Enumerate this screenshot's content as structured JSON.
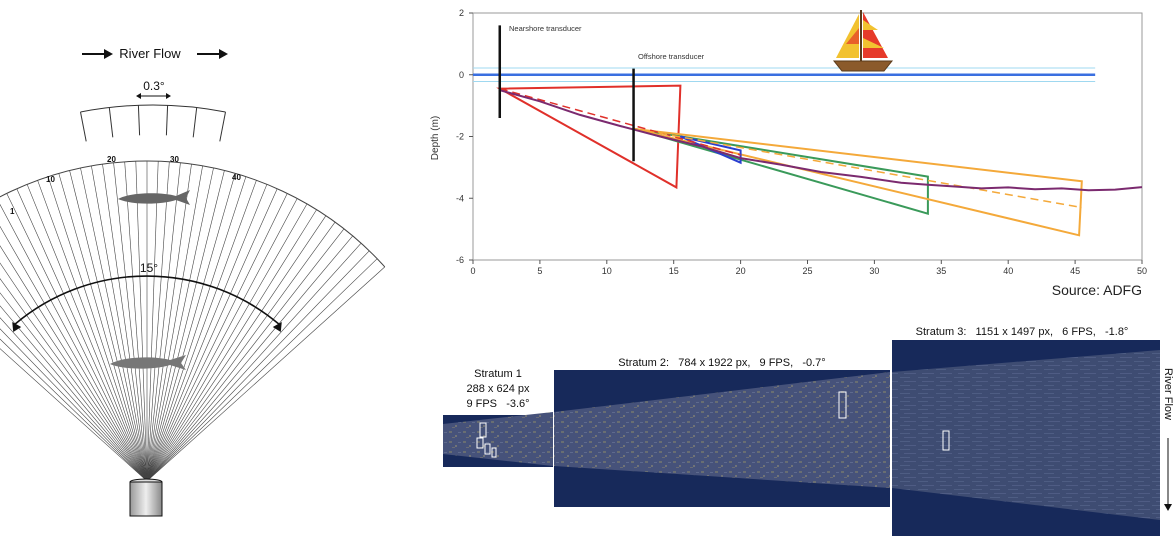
{
  "sonar_diagram": {
    "flow_label": "River Flow",
    "beam_width_label": "0.3°",
    "fan_angle_label": "15°",
    "beam_numbers": [
      "1",
      "10",
      "20",
      "30",
      "40"
    ]
  },
  "chart_data": {
    "type": "line",
    "xlabel": "",
    "ylabel": "Depth (m)",
    "xlim": [
      0,
      50
    ],
    "ylim": [
      -6,
      2
    ],
    "xticks": [
      "0",
      "5",
      "10",
      "15",
      "20",
      "25",
      "30",
      "35",
      "40",
      "45",
      "50"
    ],
    "yticks": [
      "2",
      "0",
      "-2",
      "-4",
      "-6"
    ],
    "annotations": [
      "Nearshore transducer",
      "Offshore transducer"
    ],
    "source": "Source: ADFG",
    "surface": {
      "y": 0,
      "x_range": [
        0,
        46.5
      ],
      "color": "#3a6fe0"
    },
    "nearshore_transducer": {
      "x": 2,
      "y_top": 1.6,
      "y_bottom": -1.4
    },
    "offshore_transducer": {
      "x": 12,
      "y_top": 0.2,
      "y_bottom": -2.8
    },
    "riverbed": {
      "color": "#7b2a6f",
      "points": [
        [
          2,
          -0.5
        ],
        [
          5,
          -0.9
        ],
        [
          8,
          -1.3
        ],
        [
          11,
          -1.7
        ],
        [
          14,
          -2.0
        ],
        [
          17,
          -2.35
        ],
        [
          20,
          -2.7
        ],
        [
          23,
          -2.95
        ],
        [
          26,
          -3.15
        ],
        [
          29,
          -3.35
        ],
        [
          32,
          -3.5
        ],
        [
          34,
          -3.6
        ],
        [
          36,
          -3.62
        ],
        [
          38,
          -3.72
        ],
        [
          40,
          -3.65
        ],
        [
          42,
          -3.75
        ],
        [
          44,
          -3.68
        ],
        [
          46,
          -3.78
        ],
        [
          48,
          -3.72
        ],
        [
          50,
          -3.68
        ]
      ]
    },
    "beams": [
      {
        "color": "#e0302a",
        "points": [
          [
            2,
            -0.45
          ],
          [
            15.5,
            -0.35
          ],
          [
            15.2,
            -3.65
          ]
        ]
      },
      {
        "color": "#3a9a5a",
        "points": [
          [
            12,
            -1.75
          ],
          [
            34,
            -3.3
          ],
          [
            34,
            -4.5
          ]
        ]
      },
      {
        "color": "#f4a93a",
        "points": [
          [
            12,
            -1.75
          ],
          [
            45.5,
            -3.45
          ],
          [
            45.3,
            -5.2
          ]
        ]
      },
      {
        "color": "#2a3fd0",
        "points": [
          [
            15.5,
            -2.0
          ],
          [
            20,
            -2.45
          ],
          [
            20,
            -2.85
          ]
        ]
      }
    ],
    "dashed_beams": [
      {
        "color": "#e0302a",
        "points": [
          [
            2,
            -0.45
          ],
          [
            20,
            -2.6
          ]
        ]
      },
      {
        "color": "#f4a93a",
        "points": [
          [
            12,
            -1.75
          ],
          [
            45.5,
            -4.3
          ]
        ]
      }
    ]
  },
  "strata": [
    {
      "name": "Stratum 1",
      "lines": [
        "Stratum 1",
        "288 x 624 px",
        "9 FPS   -3.6°"
      ]
    },
    {
      "name": "Stratum 2",
      "lines": [
        "Stratum 2:   784 x 1922 px,   9 FPS,   -0.7°"
      ]
    },
    {
      "name": "Stratum 3",
      "lines": [
        "Stratum 3:   1151 x 1497 px,   6 FPS,   -1.8°"
      ]
    }
  ],
  "side_label": "River Flow",
  "colors": {
    "sonar_bg": "#17295a",
    "sonar_inner": "#3d4b6a",
    "chart_frame": "#9a9a9a"
  }
}
